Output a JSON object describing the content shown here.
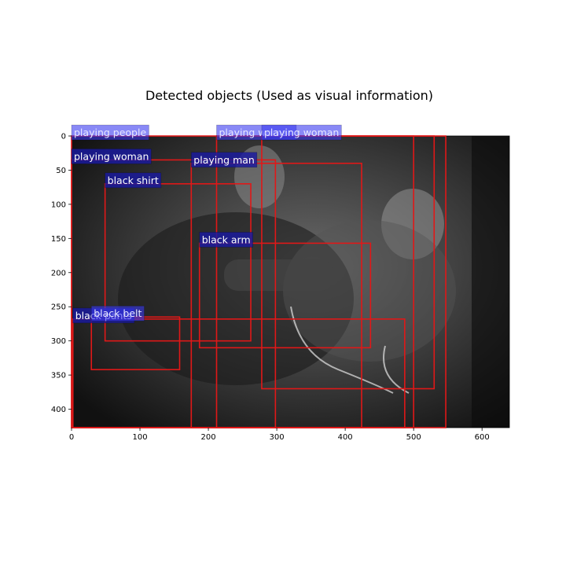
{
  "title": "Detected objects (Used as visual information)",
  "axes": {
    "x_ticks": [
      0,
      100,
      200,
      300,
      400,
      500,
      600
    ],
    "y_ticks": [
      0,
      50,
      100,
      150,
      200,
      250,
      300,
      350,
      400
    ],
    "x_range": [
      0,
      640
    ],
    "y_range": [
      0,
      427
    ]
  },
  "image": {
    "description_tokens": [
      "grayscale-photo",
      "people-playing-video-game"
    ],
    "bg_color": "#2a2a2a"
  },
  "colors": {
    "box_stroke": "#e01818",
    "label_bg": "#1a1aa0",
    "label_text": "#ffffff"
  },
  "detections": [
    {
      "label": "playing people",
      "x0": 0,
      "y0": 0,
      "x1": 500,
      "y1": 427,
      "label_style": "light"
    },
    {
      "label": "playing woman",
      "x0": 212,
      "y0": 0,
      "x1": 547,
      "y1": 427,
      "label_style": "light"
    },
    {
      "label": "playing woman",
      "x0": 278,
      "y0": 0,
      "x1": 530,
      "y1": 370,
      "label_style": "light"
    },
    {
      "label": "playing woman",
      "x0": 0,
      "y0": 35,
      "x1": 298,
      "y1": 427,
      "label_style": "dark"
    },
    {
      "label": "playing man",
      "x0": 175,
      "y0": 40,
      "x1": 424,
      "y1": 427,
      "label_style": "dark"
    },
    {
      "label": "black shirt",
      "x0": 49,
      "y0": 70,
      "x1": 262,
      "y1": 300,
      "label_style": "dark"
    },
    {
      "label": "black arm",
      "x0": 187,
      "y0": 157,
      "x1": 437,
      "y1": 310,
      "label_style": "dark"
    },
    {
      "label": "black pants",
      "x0": 2,
      "y0": 268,
      "x1": 487,
      "y1": 427,
      "label_style": "dark"
    },
    {
      "label": "black belt",
      "x0": 29,
      "y0": 265,
      "x1": 158,
      "y1": 342,
      "label_style": "light"
    }
  ]
}
